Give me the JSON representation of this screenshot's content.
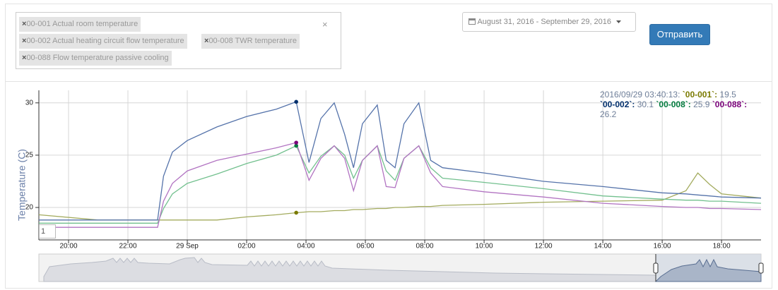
{
  "filters": {
    "chips": [
      {
        "remove": "×",
        "label": "00-001 Actual room temperature"
      },
      {
        "remove": "×",
        "label": "00-002 Actual heating circuit flow temperature"
      },
      {
        "remove": "×",
        "label": "00-008 TWR temperature"
      },
      {
        "remove": "×",
        "label": "00-088 Flow temperature passive cooling"
      }
    ],
    "clear": "×"
  },
  "date_range": "August 31, 2016 - September 29, 2016",
  "submit": "Отправить",
  "roll_period": "1",
  "chart_data": {
    "type": "line",
    "ylabel": "Temperature (C)",
    "legend_time": "2016/09/29 03:40:13:",
    "x": [
      19,
      21,
      23,
      23.2,
      23.5,
      24,
      25,
      26,
      27,
      27.67,
      28.1,
      28.5,
      28.95,
      29.3,
      29.6,
      29.9,
      30.4,
      30.7,
      31.0,
      31.3,
      31.8,
      32.2,
      32.6,
      34,
      36,
      38,
      40,
      40.8,
      41.2,
      41.6,
      42,
      43.33
    ],
    "xlim": [
      19,
      43.33
    ],
    "xticks": [
      {
        "value": 20,
        "label": "20:00"
      },
      {
        "value": 22,
        "label": "22:00"
      },
      {
        "value": 24,
        "label": "29 Sep"
      },
      {
        "value": 26,
        "label": "02:00"
      },
      {
        "value": 28,
        "label": "04:00"
      },
      {
        "value": 30,
        "label": "06:00"
      },
      {
        "value": 32,
        "label": "08:00"
      },
      {
        "value": 34,
        "label": "10:00"
      },
      {
        "value": 36,
        "label": "12:00"
      },
      {
        "value": 38,
        "label": "14:00"
      },
      {
        "value": 40,
        "label": "16:00"
      },
      {
        "value": 42,
        "label": "18:00"
      }
    ],
    "ylim": [
      16.9,
      31.2
    ],
    "yticks": [
      20,
      25,
      30
    ],
    "grid": true,
    "highlight_index": 9,
    "series": [
      {
        "name": "`00-001`:",
        "color": "#a3ab5e",
        "label_color": "#7a7a00",
        "values": [
          19.3,
          18.8,
          18.8,
          18.8,
          18.8,
          18.8,
          18.8,
          19.1,
          19.3,
          19.5,
          19.6,
          19.6,
          19.7,
          19.7,
          19.8,
          19.8,
          19.9,
          19.9,
          20.0,
          20.0,
          20.1,
          20.1,
          20.2,
          20.3,
          20.5,
          20.6,
          20.7,
          21.6,
          23.3,
          22.2,
          21.3,
          20.9
        ]
      },
      {
        "name": "`00-002`:",
        "color": "#5573aa",
        "label_color": "#002f6c",
        "values": [
          18.8,
          18.8,
          18.8,
          23.0,
          25.3,
          26.4,
          27.7,
          28.7,
          29.4,
          30.1,
          24.3,
          28.5,
          30.0,
          27.0,
          23.8,
          28.0,
          29.8,
          24.5,
          23.8,
          28.0,
          30.0,
          24.5,
          23.8,
          23.3,
          22.5,
          22.0,
          21.4,
          21.3,
          21.2,
          21.1,
          21.0,
          20.9
        ]
      },
      {
        "name": "`00-008`:",
        "color": "#72c08e",
        "label_color": "#007a3d",
        "values": [
          18.5,
          18.5,
          18.5,
          19.9,
          21.3,
          22.3,
          23.2,
          24.2,
          25.0,
          25.9,
          23.3,
          24.9,
          25.9,
          25.0,
          22.8,
          24.5,
          25.9,
          23.5,
          22.6,
          24.7,
          25.9,
          23.8,
          22.8,
          22.4,
          21.8,
          21.1,
          20.8,
          20.7,
          20.7,
          20.6,
          20.6,
          20.4
        ]
      },
      {
        "name": "`00-088`:",
        "color": "#b274c2",
        "label_color": "#7a007a",
        "values": [
          18.1,
          18.1,
          18.1,
          20.6,
          22.3,
          23.5,
          24.5,
          25.1,
          25.7,
          26.2,
          22.6,
          24.7,
          25.9,
          24.7,
          21.6,
          24.5,
          25.9,
          22.0,
          21.9,
          24.7,
          25.9,
          23.3,
          22.0,
          21.5,
          21.0,
          20.4,
          20.1,
          20.0,
          20.0,
          19.9,
          19.9,
          19.8
        ]
      }
    ]
  }
}
